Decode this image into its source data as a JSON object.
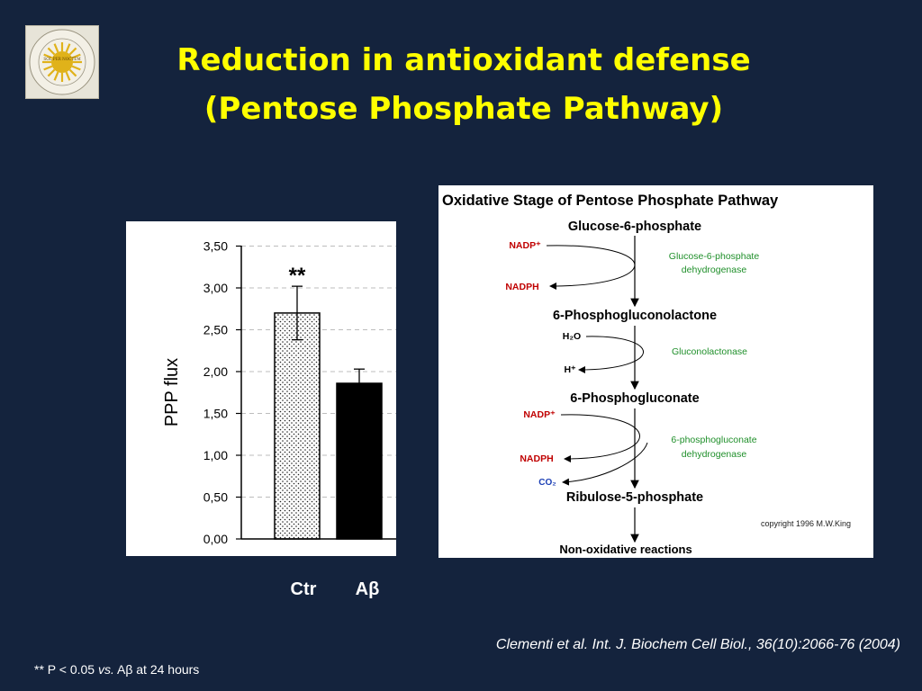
{
  "slide": {
    "title_line1": "Reduction in antioxidant defense",
    "title_line2": "(Pentose Phosphate Pathway)",
    "citation": "Clementi et al. Int. J. Biochem Cell Biol., 36(10):2066-76 (2004)",
    "footnote": {
      "prefix": "** P < 0.05 ",
      "vs": "vs.",
      "suffix": " Aβ at 24 hours"
    },
    "logo": {
      "text": "SOL PER NOCTEM",
      "ring_text": "UNIVERSITA DEGLI STUDI DI CASSINO E DEL LAZIO MERIDIONALE"
    }
  },
  "chart_data": {
    "type": "bar",
    "categories": [
      "Ctr",
      "Aβ"
    ],
    "values": [
      2.7,
      1.86
    ],
    "errors": [
      0.32,
      0.17
    ],
    "significance": [
      "**",
      ""
    ],
    "ylabel": "PPP flux",
    "ylim": [
      0,
      3.5
    ],
    "yticks": [
      0,
      0.5,
      1.0,
      1.5,
      2.0,
      2.5,
      3.0,
      3.5
    ],
    "ytick_labels": [
      "0,00",
      "0,50",
      "1,00",
      "1,50",
      "2,00",
      "2,50",
      "3,00",
      "3,50"
    ],
    "grid": true,
    "bar_fills": [
      "dotted",
      "#000000"
    ]
  },
  "pathway": {
    "title": "Oxidative Stage of Pentose Phosphate Pathway",
    "compounds": [
      "Glucose-6-phosphate",
      "6-Phosphogluconolactone",
      "6-Phosphogluconate",
      "Ribulose-5-phosphate",
      "Non-oxidative reactions"
    ],
    "steps": [
      {
        "in": "NADP⁺",
        "out": "NADPH",
        "extra": "",
        "enzyme_line1": "Glucose-6-phosphate",
        "enzyme_line2": "dehydrogenase"
      },
      {
        "in": "H₂O",
        "out": "H⁺",
        "extra": "",
        "enzyme_line1": "Gluconolactonase",
        "enzyme_line2": ""
      },
      {
        "in": "NADP⁺",
        "out": "NADPH",
        "extra": "CO₂",
        "enzyme_line1": "6-phosphogluconate",
        "enzyme_line2": "dehydrogenase"
      }
    ],
    "copyright": "copyright 1996 M.W.King",
    "colors": {
      "cofactor": "#c00000",
      "enzyme": "#1f8f2a",
      "co2": "#1b3fb5"
    }
  }
}
